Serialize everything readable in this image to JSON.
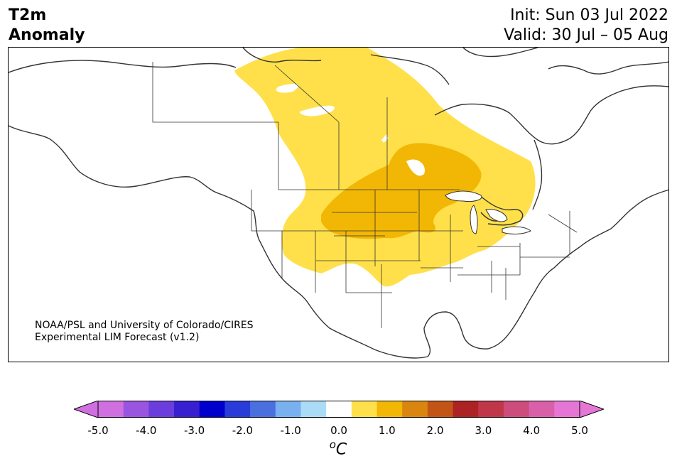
{
  "header": {
    "title_line1": "T2m",
    "title_line2": "Anomaly",
    "init": "Init: Sun 03 Jul 2022",
    "valid": "Valid: 30 Jul – 05 Aug"
  },
  "credit": {
    "line1": "NOAA/PSL and University of Colorado/CIRES",
    "line2": "Experimental LIM Forecast (v1.2)"
  },
  "colorbar": {
    "tick_labels": [
      "-5.0",
      "-4.0",
      "-3.0",
      "-2.0",
      "-1.0",
      "0.0",
      "1.0",
      "2.0",
      "3.0",
      "4.0",
      "5.0"
    ],
    "unit_prefix": "o",
    "unit": "C",
    "levels": [
      -5.0,
      -4.5,
      -4.0,
      -3.5,
      -3.0,
      -2.5,
      -2.0,
      -1.5,
      -1.0,
      -0.5,
      0.5,
      1.0,
      1.5,
      2.0,
      2.5,
      3.0,
      3.5,
      4.0,
      4.5,
      5.0
    ],
    "colors": [
      "#d070e0",
      "#9a55e0",
      "#6a3ddc",
      "#3820d0",
      "#0000cc",
      "#2a3cd8",
      "#4a70e0",
      "#78b0f0",
      "#aadcf8",
      "#ffffff",
      "#ffe04a",
      "#f2b705",
      "#d98510",
      "#c25516",
      "#ad2323",
      "#c0374a",
      "#cc4c7c",
      "#d860a8",
      "#e676d6"
    ],
    "extend_low_color": "#d070e0",
    "extend_high_color": "#e676d6"
  },
  "map": {
    "region": "North America",
    "anomaly_1_0_color": "#ffe04a",
    "anomaly_1_5_color": "#f2b705"
  }
}
